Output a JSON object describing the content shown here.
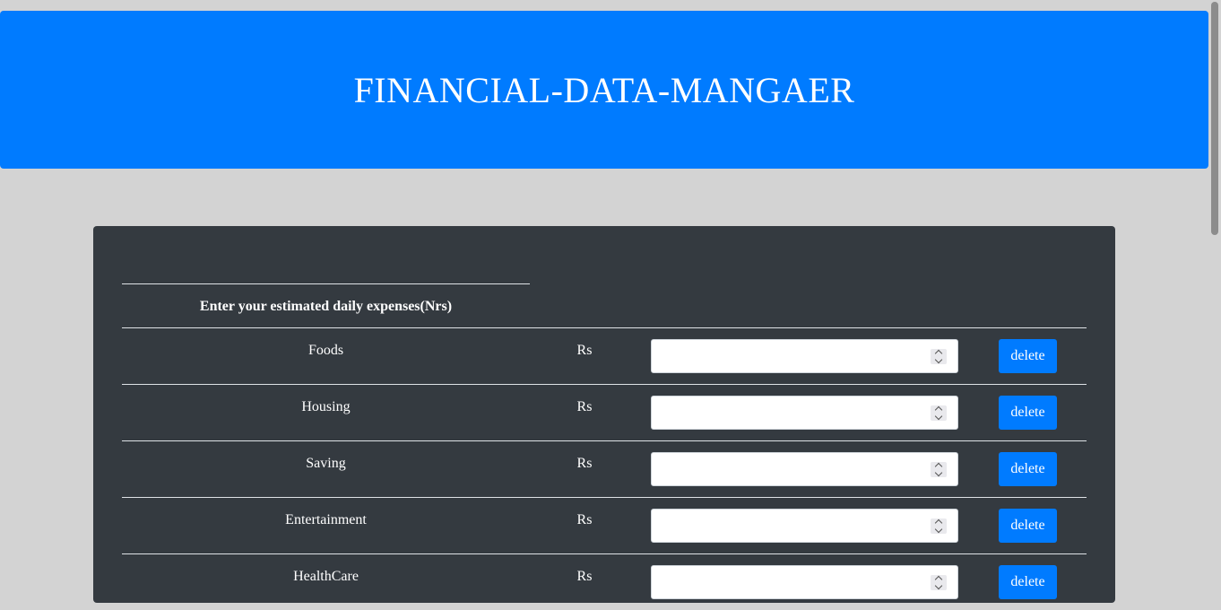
{
  "header": {
    "title": "FINANCIAL-DATA-MANGAER"
  },
  "form": {
    "section_title": "Enter your estimated daily expenses(Nrs)",
    "rows": [
      {
        "label": "Foods",
        "unit": "Rs",
        "value": "",
        "delete_label": "delete"
      },
      {
        "label": "Housing",
        "unit": "Rs",
        "value": "",
        "delete_label": "delete"
      },
      {
        "label": "Saving",
        "unit": "Rs",
        "value": "",
        "delete_label": "delete"
      },
      {
        "label": "Entertainment",
        "unit": "Rs",
        "value": "",
        "delete_label": "delete"
      },
      {
        "label": "HealthCare",
        "unit": "Rs",
        "value": "",
        "delete_label": "delete"
      }
    ]
  },
  "colors": {
    "page_background": "#d3d3d3",
    "header_background": "#007bff",
    "panel_background": "#343a40",
    "button_background": "#007bff"
  }
}
